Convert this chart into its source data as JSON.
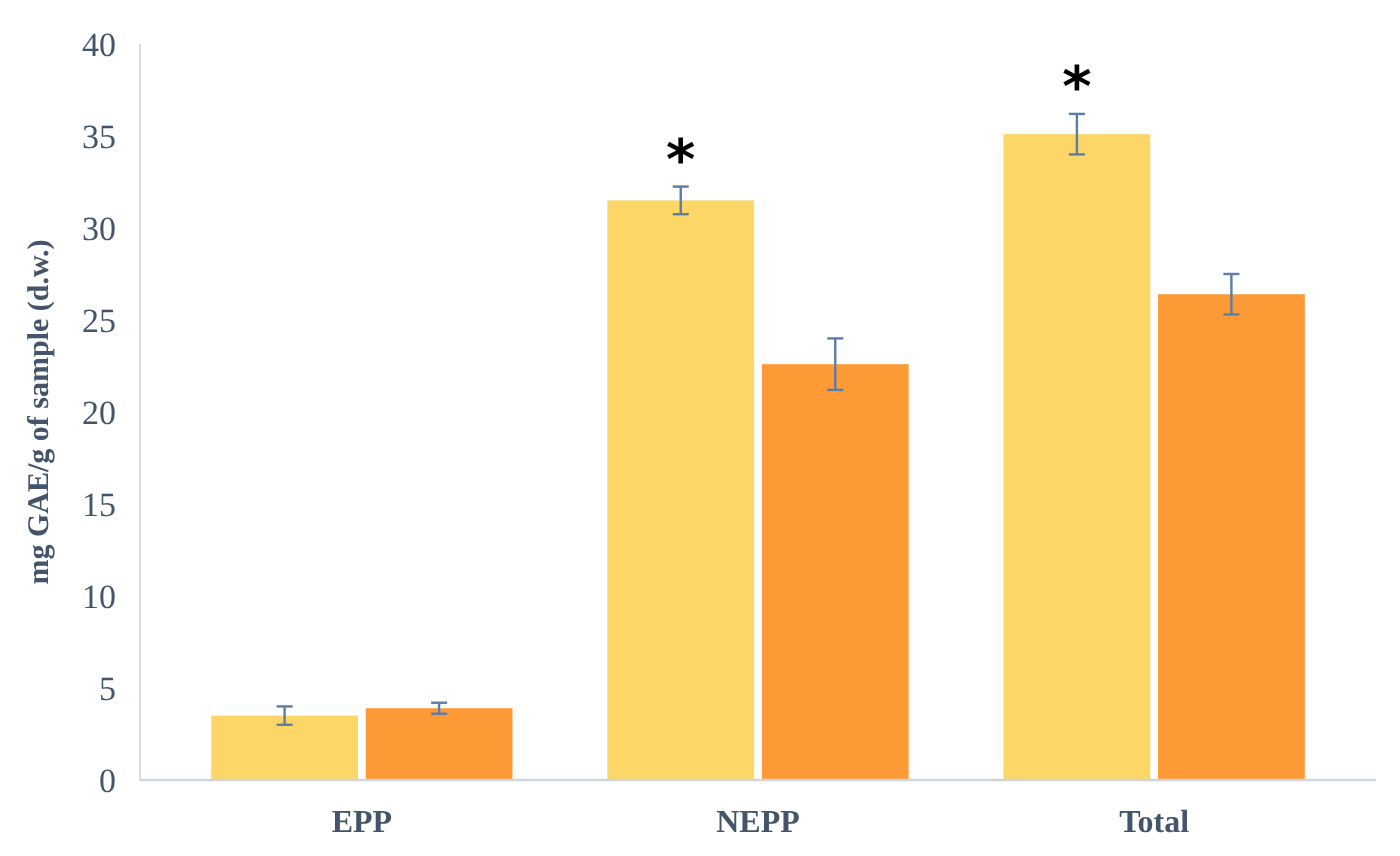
{
  "chart_data": {
    "type": "bar",
    "categories": [
      "EPP",
      "NEPP",
      "Total"
    ],
    "ylabel": "mg GAE/g of sample (d.w.)",
    "ylim": [
      0,
      40
    ],
    "yticks": [
      0,
      5,
      10,
      15,
      20,
      25,
      30,
      35,
      40
    ],
    "grid": false,
    "series": [
      {
        "color": "#fcd667",
        "values": [
          3.5,
          31.5,
          35.1
        ],
        "errors": [
          0.5,
          0.75,
          1.1
        ]
      },
      {
        "color": "#fd9a36",
        "values": [
          3.9,
          22.6,
          26.4
        ],
        "errors": [
          0.3,
          1.4,
          1.1
        ]
      }
    ],
    "annotations": [
      {
        "text": "*",
        "x": "NEPP",
        "y": 31.5
      },
      {
        "text": "*",
        "x": "Total",
        "y": 35.1
      }
    ]
  }
}
